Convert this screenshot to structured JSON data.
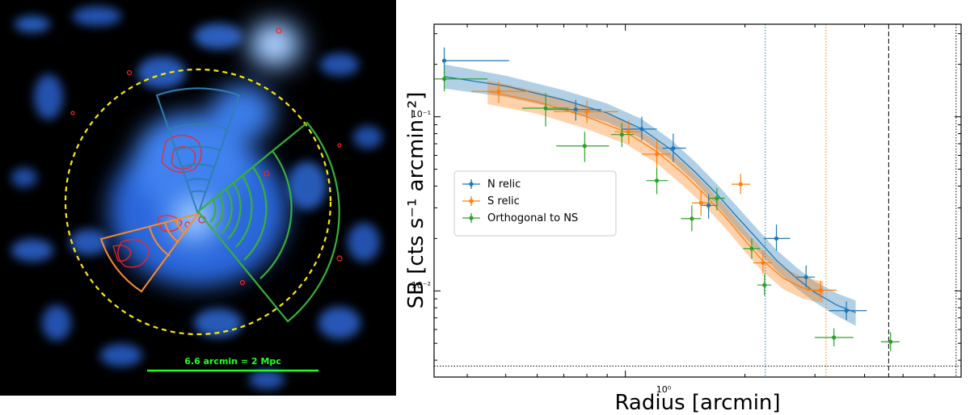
{
  "image_panel": {
    "scale_bar_label": "6.6 arcmin = 2 Mpc",
    "colors": {
      "background": "#000000",
      "emission": "#3a7bff",
      "contours": "#ff2020",
      "circle": "#ffea00",
      "north_sector": "#2f7fb3",
      "south_sector": "#ff8a2a",
      "orthogonal_sector": "#38b038",
      "scale_bar": "#20ff20"
    }
  },
  "chart_data": {
    "type": "scatter",
    "title": "",
    "xlabel": "Radius [arcmin]",
    "ylabel": "SB [cts s⁻¹ arcmin⁻²]",
    "xscale": "log",
    "yscale": "log",
    "xlim": [
      0.33,
      7.0
    ],
    "ylim": [
      0.0032,
      0.34
    ],
    "x_tick_labels": [
      {
        "value": 1,
        "label": "10⁰"
      }
    ],
    "y_tick_labels": [
      {
        "value": 0.1,
        "label": "10⁻¹"
      },
      {
        "value": 0.01,
        "label": "10⁻²"
      }
    ],
    "legend_position": "center-left",
    "series": [
      {
        "name": "N relic",
        "color": "#1f77b4",
        "points": [
          {
            "x": 0.35,
            "y": 0.21,
            "xerr": [
              0.35,
              0.51
            ],
            "yerr": [
              0.175,
              0.25
            ]
          },
          {
            "x": 0.75,
            "y": 0.11,
            "xerr": [
              0.63,
              0.87
            ],
            "yerr": [
              0.095,
              0.125
            ]
          },
          {
            "x": 1.1,
            "y": 0.085,
            "xerr": [
              0.98,
              1.2
            ],
            "yerr": [
              0.073,
              0.1
            ]
          },
          {
            "x": 1.32,
            "y": 0.066,
            "xerr": [
              1.24,
              1.42
            ],
            "yerr": [
              0.055,
              0.08
            ]
          },
          {
            "x": 1.62,
            "y": 0.031,
            "xerr": [
              1.55,
              1.7
            ],
            "yerr": [
              0.026,
              0.036
            ]
          },
          {
            "x": 2.4,
            "y": 0.02,
            "xerr": [
              2.23,
              2.6
            ],
            "yerr": [
              0.017,
              0.024
            ]
          },
          {
            "x": 2.85,
            "y": 0.012,
            "xerr": [
              2.7,
              3.0
            ],
            "yerr": [
              0.0105,
              0.014
            ]
          },
          {
            "x": 3.6,
            "y": 0.0077,
            "xerr": [
              3.25,
              4.05
            ],
            "yerr": [
              0.0068,
              0.0087
            ]
          }
        ]
      },
      {
        "name": "S relic",
        "color": "#ff7f0e",
        "points": [
          {
            "x": 0.48,
            "y": 0.14,
            "xerr": [
              0.41,
              0.57
            ],
            "yerr": [
              0.12,
              0.16
            ]
          },
          {
            "x": 0.8,
            "y": 0.107,
            "xerr": [
              0.66,
              0.96
            ],
            "yerr": [
              0.092,
              0.124
            ]
          },
          {
            "x": 1.02,
            "y": 0.082,
            "xerr": [
              0.94,
              1.1
            ],
            "yerr": [
              0.07,
              0.095
            ]
          },
          {
            "x": 1.2,
            "y": 0.061,
            "xerr": [
              1.1,
              1.3
            ],
            "yerr": [
              0.051,
              0.073
            ]
          },
          {
            "x": 1.55,
            "y": 0.032,
            "xerr": [
              1.47,
              1.66
            ],
            "yerr": [
              0.027,
              0.038
            ]
          },
          {
            "x": 1.95,
            "y": 0.041,
            "xerr": [
              1.85,
              2.06
            ],
            "yerr": [
              0.036,
              0.047
            ]
          },
          {
            "x": 2.22,
            "y": 0.0145,
            "xerr": [
              2.1,
              2.34
            ],
            "yerr": [
              0.0125,
              0.017
            ]
          },
          {
            "x": 3.1,
            "y": 0.0101,
            "xerr": [
              2.85,
              3.4
            ],
            "yerr": [
              0.009,
              0.0114
            ]
          }
        ]
      },
      {
        "name": "Orthogonal to NS",
        "color": "#2ca02c",
        "points": [
          {
            "x": 0.35,
            "y": 0.165,
            "xerr": [
              0.33,
              0.45
            ],
            "yerr": [
              0.14,
              0.19
            ]
          },
          {
            "x": 0.63,
            "y": 0.112,
            "xerr": [
              0.55,
              0.72
            ],
            "yerr": [
              0.088,
              0.137
            ]
          },
          {
            "x": 0.79,
            "y": 0.068,
            "xerr": [
              0.67,
              0.91
            ],
            "yerr": [
              0.055,
              0.082
            ]
          },
          {
            "x": 0.98,
            "y": 0.079,
            "xerr": [
              0.92,
              1.05
            ],
            "yerr": [
              0.067,
              0.092
            ]
          },
          {
            "x": 1.2,
            "y": 0.043,
            "xerr": [
              1.13,
              1.28
            ],
            "yerr": [
              0.036,
              0.051
            ]
          },
          {
            "x": 1.47,
            "y": 0.026,
            "xerr": [
              1.38,
              1.55
            ],
            "yerr": [
              0.022,
              0.031
            ]
          },
          {
            "x": 1.7,
            "y": 0.034,
            "xerr": [
              1.62,
              1.78
            ],
            "yerr": [
              0.029,
              0.039
            ]
          },
          {
            "x": 2.08,
            "y": 0.0175,
            "xerr": [
              1.98,
              2.18
            ],
            "yerr": [
              0.0153,
              0.02
            ]
          },
          {
            "x": 2.24,
            "y": 0.0108,
            "xerr": [
              2.15,
              2.33
            ],
            "yerr": [
              0.0094,
              0.0125
            ]
          },
          {
            "x": 3.35,
            "y": 0.0054,
            "xerr": [
              3.0,
              3.75
            ],
            "yerr": [
              0.0048,
              0.0061
            ]
          },
          {
            "x": 4.65,
            "y": 0.0051,
            "xerr": [
              4.4,
              4.9
            ],
            "yerr": [
              0.0045,
              0.0058
            ]
          }
        ]
      }
    ],
    "model_curves": [
      {
        "series": "N relic",
        "color": "#1f77b4",
        "x": [
          0.35,
          0.5,
          0.7,
          0.9,
          1.1,
          1.3,
          1.5,
          1.7,
          1.9,
          2.1,
          2.4,
          2.7,
          3.0,
          3.4,
          3.8
        ],
        "y": [
          0.17,
          0.15,
          0.125,
          0.105,
          0.085,
          0.065,
          0.048,
          0.036,
          0.027,
          0.021,
          0.015,
          0.0118,
          0.0098,
          0.0083,
          0.0075
        ],
        "band_low": [
          0.145,
          0.13,
          0.11,
          0.093,
          0.075,
          0.057,
          0.042,
          0.031,
          0.023,
          0.018,
          0.0131,
          0.0103,
          0.0086,
          0.0072,
          0.0063
        ],
        "band_high": [
          0.2,
          0.172,
          0.142,
          0.119,
          0.097,
          0.074,
          0.055,
          0.041,
          0.031,
          0.024,
          0.0172,
          0.0136,
          0.0113,
          0.0097,
          0.0088
        ]
      },
      {
        "series": "S relic",
        "color": "#ff7f0e",
        "x": [
          0.45,
          0.6,
          0.8,
          1.0,
          1.2,
          1.4,
          1.6,
          1.8,
          2.0,
          2.2,
          2.5,
          2.8,
          3.15
        ],
        "y": [
          0.14,
          0.122,
          0.1,
          0.082,
          0.063,
          0.047,
          0.035,
          0.026,
          0.0195,
          0.0152,
          0.0118,
          0.0104,
          0.0098
        ],
        "band_low": [
          0.118,
          0.104,
          0.085,
          0.07,
          0.054,
          0.04,
          0.03,
          0.0224,
          0.0168,
          0.0131,
          0.0102,
          0.009,
          0.0085
        ],
        "band_high": [
          0.162,
          0.14,
          0.115,
          0.094,
          0.072,
          0.054,
          0.04,
          0.03,
          0.0224,
          0.0175,
          0.0136,
          0.012,
          0.0113
        ]
      }
    ],
    "reference_lines": {
      "vertical": [
        {
          "x": 2.25,
          "color": "#1f77b4",
          "style": "dotted"
        },
        {
          "x": 3.2,
          "color": "#ff7f0e",
          "style": "dotted"
        },
        {
          "x": 4.6,
          "color": "#000000",
          "style": "dashed"
        },
        {
          "x": 6.8,
          "color": "#000000",
          "style": "dotted"
        }
      ],
      "horizontal": [
        {
          "y": 0.0037,
          "color": "#000000",
          "style": "dotted"
        }
      ]
    }
  }
}
